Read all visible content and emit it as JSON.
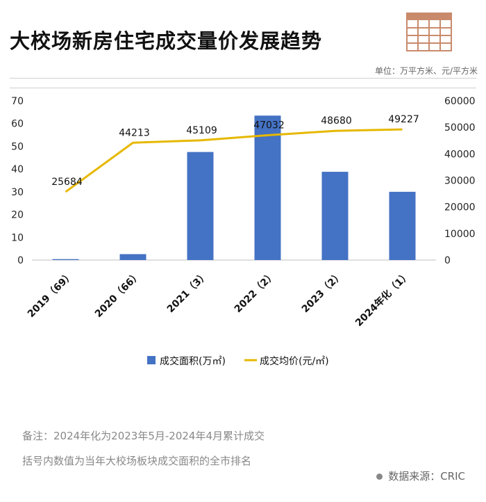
{
  "header": {
    "title": "大校场新房住宅成交量价发展趋势",
    "unit": "单位：万平方米、元/平方米"
  },
  "notes": {
    "line1": "备注：2024年化为2023年5月-2024年4月累计成交",
    "line2": "括号内数值为当年大校场板块成交面积的全市排名"
  },
  "source": "数据来源：CRIC",
  "colors": {
    "bar": "#4472C4",
    "line": "#E6B800",
    "logo": "#C98A6C"
  },
  "chart_data": {
    "type": "bar",
    "categories": [
      "2019（69）",
      "2020（66）",
      "2021（3）",
      "2022（2）",
      "2023（2）",
      "2024年化（1）"
    ],
    "series": [
      {
        "name": "成交面积(万㎡)",
        "type": "bar",
        "axis": "left",
        "values": [
          0.4,
          2.6,
          47.5,
          63.5,
          38.8,
          30.0
        ]
      },
      {
        "name": "成交均价(元/㎡)",
        "type": "line",
        "axis": "right",
        "values": [
          25684,
          44213,
          45109,
          47032,
          48680,
          49227
        ],
        "labels": [
          "25684",
          "44213",
          "45109",
          "47032",
          "48680",
          "49227"
        ]
      }
    ],
    "ylim_left": [
      0,
      70
    ],
    "yticks_left": [
      "0",
      "10",
      "20",
      "30",
      "40",
      "50",
      "60",
      "70"
    ],
    "ylim_right": [
      0,
      60000
    ],
    "yticks_right": [
      "0",
      "10000",
      "20000",
      "30000",
      "40000",
      "50000",
      "60000"
    ],
    "legend_position": "bottom",
    "grid": false
  }
}
